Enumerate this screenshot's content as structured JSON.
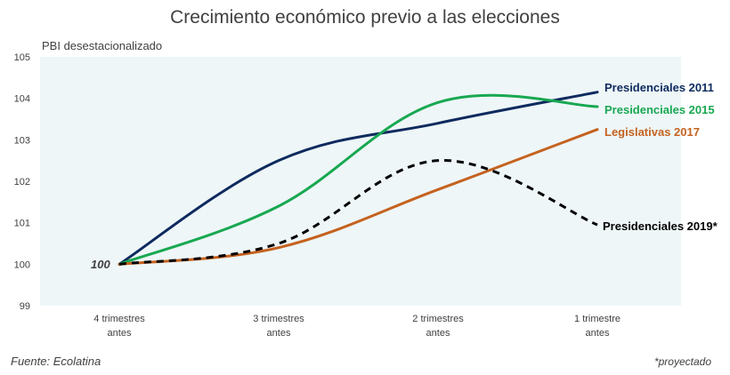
{
  "chart_data": {
    "type": "line",
    "title": "Crecimiento económico previo a las elecciones",
    "ylabel": "PBI desestacionalizado",
    "xlabel": "",
    "ylim": [
      99,
      105
    ],
    "yticks": [
      "99",
      "100",
      "101",
      "102",
      "103",
      "104",
      "105"
    ],
    "categories": [
      [
        "4 trimestres",
        "antes"
      ],
      [
        "3 trimestres",
        "antes"
      ],
      [
        "2 trimestres",
        "antes"
      ],
      [
        "1 trimestre",
        "antes"
      ]
    ],
    "series": [
      {
        "name": "Presidenciales 2011",
        "color": "#0e2a5e",
        "dashed": false,
        "values": [
          100,
          102.5,
          103.4,
          104.15
        ]
      },
      {
        "name": "Presidenciales 2015",
        "color": "#18a851",
        "dashed": false,
        "values": [
          100,
          101.4,
          103.9,
          103.8
        ]
      },
      {
        "name": "Legislativas 2017",
        "color": "#c5621f",
        "dashed": false,
        "values": [
          100,
          100.4,
          101.8,
          103.25
        ]
      },
      {
        "name": "Presidenciales 2019*",
        "color": "#000000",
        "dashed": true,
        "values": [
          100,
          100.5,
          102.5,
          100.95
        ]
      }
    ],
    "annotation": "100",
    "grid": false,
    "plot_background": "#eef6f8",
    "legend": "right"
  },
  "footer": {
    "source": "Fuente: Ecolatina",
    "note": "*proyectado"
  }
}
